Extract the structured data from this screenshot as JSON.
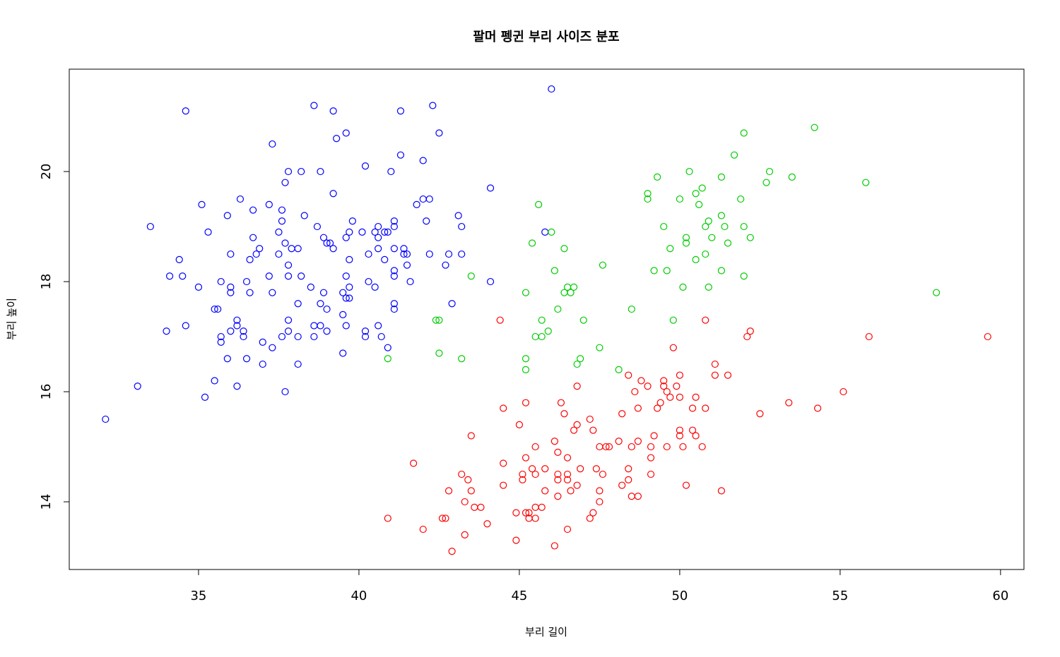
{
  "chart_data": {
    "type": "scatter",
    "title": "팔머 펭귄 부리 사이즈 분포",
    "xlabel": "부리 길이",
    "ylabel": "부리 높이",
    "xlim": [
      30.97,
      60.73
    ],
    "ylim": [
      12.77,
      21.86
    ],
    "xticks": [
      35,
      40,
      45,
      50,
      55,
      60
    ],
    "yticks": [
      14,
      16,
      18,
      20
    ],
    "grid": false,
    "series": [
      {
        "color": "blue",
        "x": [
          32.1,
          33.1,
          33.5,
          34.0,
          34.1,
          34.4,
          34.5,
          34.6,
          34.6,
          35.0,
          35.1,
          35.2,
          35.3,
          35.5,
          35.5,
          35.6,
          35.7,
          35.7,
          35.7,
          35.9,
          35.9,
          36.0,
          36.0,
          36.0,
          36.0,
          36.2,
          36.2,
          36.2,
          36.3,
          36.4,
          36.4,
          36.5,
          36.5,
          36.6,
          36.6,
          36.7,
          36.7,
          36.8,
          36.9,
          37.0,
          37.0,
          37.2,
          37.2,
          37.3,
          37.3,
          37.3,
          37.5,
          37.5,
          37.6,
          37.6,
          37.6,
          37.7,
          37.7,
          37.7,
          37.8,
          37.8,
          37.8,
          37.8,
          37.8,
          37.9,
          38.1,
          38.1,
          38.1,
          38.1,
          38.2,
          38.2,
          38.3,
          38.5,
          38.6,
          38.6,
          38.6,
          38.7,
          38.8,
          38.8,
          38.8,
          38.9,
          38.9,
          39.0,
          39.0,
          39.0,
          39.1,
          39.2,
          39.2,
          39.2,
          39.3,
          39.5,
          39.5,
          39.5,
          39.6,
          39.6,
          39.6,
          39.6,
          39.6,
          39.7,
          39.7,
          39.7,
          39.7,
          39.8,
          40.1,
          40.2,
          40.2,
          40.2,
          40.3,
          40.3,
          40.5,
          40.5,
          40.6,
          40.6,
          40.6,
          40.6,
          40.7,
          40.8,
          40.8,
          40.9,
          40.9,
          41.0,
          41.1,
          41.1,
          41.1,
          41.1,
          41.1,
          41.1,
          41.1,
          41.3,
          41.3,
          41.4,
          41.4,
          41.5,
          41.5,
          41.6,
          41.8,
          42.0,
          42.0,
          42.1,
          42.2,
          42.2,
          42.3,
          42.5,
          42.7,
          42.8,
          42.9,
          43.1,
          43.2,
          43.2,
          44.1,
          44.1,
          46.0,
          45.8
        ],
        "values": [
          15.5,
          16.1,
          19.0,
          17.1,
          18.1,
          18.4,
          18.1,
          21.1,
          17.2,
          17.9,
          19.4,
          15.9,
          18.9,
          16.2,
          17.5,
          17.5,
          18.0,
          17.0,
          16.9,
          16.6,
          19.2,
          18.5,
          17.9,
          17.8,
          17.1,
          17.3,
          17.2,
          16.1,
          19.5,
          17.1,
          17.0,
          18.0,
          16.6,
          18.4,
          17.8,
          19.3,
          18.8,
          18.5,
          18.6,
          16.9,
          16.5,
          19.4,
          18.1,
          20.5,
          17.8,
          16.8,
          18.9,
          18.5,
          19.3,
          19.1,
          17.0,
          19.8,
          18.7,
          16.0,
          20.0,
          18.3,
          18.1,
          17.3,
          17.1,
          18.6,
          18.6,
          17.6,
          17.0,
          16.5,
          20.0,
          18.1,
          19.2,
          17.9,
          21.2,
          17.2,
          17.0,
          19.0,
          20.0,
          17.6,
          17.2,
          18.8,
          17.8,
          18.7,
          17.5,
          17.1,
          18.7,
          21.1,
          19.6,
          18.6,
          20.6,
          17.8,
          17.4,
          16.7,
          20.7,
          18.8,
          18.1,
          17.7,
          17.2,
          18.9,
          18.4,
          17.9,
          17.7,
          19.1,
          18.9,
          20.1,
          17.1,
          17.0,
          18.5,
          18.0,
          18.9,
          17.9,
          19.0,
          18.8,
          18.6,
          17.2,
          17.0,
          18.9,
          18.4,
          18.9,
          16.8,
          20.0,
          19.1,
          19.0,
          18.6,
          18.2,
          18.1,
          17.6,
          17.5,
          21.1,
          20.3,
          18.6,
          18.5,
          18.5,
          18.3,
          18.0,
          19.4,
          20.2,
          19.5,
          19.1,
          19.5,
          18.5,
          21.2,
          20.7,
          18.3,
          18.5,
          17.6,
          19.2,
          19.0,
          18.5,
          19.7,
          18.0,
          21.5,
          18.9
        ]
      },
      {
        "color": "#00cd00",
        "x": [
          40.9,
          42.4,
          42.5,
          42.5,
          43.2,
          43.5,
          45.2,
          45.2,
          45.2,
          45.4,
          45.5,
          45.6,
          45.7,
          45.7,
          45.9,
          46.0,
          46.1,
          46.2,
          46.4,
          46.4,
          46.5,
          46.6,
          46.7,
          46.8,
          46.9,
          47.0,
          47.5,
          47.6,
          48.1,
          48.5,
          49.0,
          49.0,
          49.2,
          49.3,
          49.5,
          49.6,
          49.7,
          49.8,
          50.0,
          50.1,
          50.2,
          50.2,
          50.3,
          50.5,
          50.5,
          50.6,
          50.7,
          50.8,
          50.8,
          50.9,
          50.9,
          51.0,
          51.3,
          51.3,
          51.3,
          51.4,
          51.5,
          51.7,
          51.9,
          52.0,
          52.0,
          52.0,
          52.2,
          52.7,
          52.8,
          53.5,
          54.2,
          55.8,
          58.0
        ],
        "values": [
          16.6,
          17.3,
          17.3,
          16.7,
          16.6,
          18.1,
          17.8,
          16.6,
          16.4,
          18.7,
          17.0,
          19.4,
          17.3,
          17.0,
          17.1,
          18.9,
          18.2,
          17.5,
          18.6,
          17.8,
          17.9,
          17.8,
          17.9,
          16.5,
          16.6,
          17.3,
          16.8,
          18.3,
          16.4,
          17.5,
          19.6,
          19.5,
          18.2,
          19.9,
          19.0,
          18.2,
          18.6,
          17.3,
          19.5,
          17.9,
          18.8,
          18.7,
          20.0,
          18.4,
          19.6,
          19.4,
          19.7,
          19.0,
          18.5,
          19.1,
          17.9,
          18.8,
          19.9,
          19.2,
          18.2,
          19.0,
          18.7,
          20.3,
          19.5,
          20.7,
          19.0,
          18.1,
          18.8,
          19.8,
          20.0,
          19.9,
          20.8,
          19.8,
          17.8
        ]
      },
      {
        "color": "red",
        "x": [
          40.9,
          41.7,
          42.0,
          42.6,
          42.7,
          42.8,
          42.9,
          43.2,
          43.3,
          43.3,
          43.4,
          43.5,
          43.5,
          43.6,
          43.8,
          44.0,
          44.4,
          44.5,
          44.5,
          44.5,
          44.9,
          44.9,
          45.0,
          45.1,
          45.1,
          45.2,
          45.2,
          45.2,
          45.3,
          45.3,
          45.4,
          45.5,
          45.5,
          45.5,
          45.5,
          45.7,
          45.8,
          45.8,
          46.1,
          46.1,
          46.2,
          46.2,
          46.2,
          46.2,
          46.3,
          46.4,
          46.5,
          46.5,
          46.5,
          46.5,
          46.6,
          46.7,
          46.8,
          46.8,
          46.8,
          46.9,
          47.2,
          47.2,
          47.3,
          47.3,
          47.4,
          47.5,
          47.5,
          47.5,
          47.6,
          47.7,
          47.8,
          48.1,
          48.2,
          48.2,
          48.4,
          48.4,
          48.4,
          48.5,
          48.5,
          48.6,
          48.7,
          48.7,
          48.7,
          48.8,
          49.0,
          49.1,
          49.1,
          49.1,
          49.2,
          49.3,
          49.4,
          49.5,
          49.5,
          49.6,
          49.6,
          49.7,
          49.8,
          49.9,
          50.0,
          50.0,
          50.0,
          50.0,
          50.1,
          50.2,
          50.4,
          50.4,
          50.5,
          50.5,
          50.7,
          50.8,
          50.8,
          51.1,
          51.1,
          51.3,
          51.5,
          52.1,
          52.2,
          52.5,
          53.4,
          54.3,
          55.1,
          55.9,
          59.6
        ],
        "values": [
          13.7,
          14.7,
          13.5,
          13.7,
          13.7,
          14.2,
          13.1,
          14.5,
          14.0,
          13.4,
          14.4,
          15.2,
          14.2,
          13.9,
          13.9,
          13.6,
          17.3,
          15.7,
          14.7,
          14.3,
          13.3,
          13.8,
          15.4,
          14.5,
          14.4,
          15.8,
          14.8,
          13.8,
          13.8,
          13.7,
          14.6,
          14.5,
          13.7,
          13.9,
          15.0,
          13.9,
          14.2,
          14.6,
          15.1,
          13.2,
          14.9,
          14.5,
          14.4,
          14.1,
          15.8,
          15.6,
          14.8,
          14.5,
          14.4,
          13.5,
          14.2,
          15.3,
          15.4,
          16.1,
          14.3,
          14.6,
          15.5,
          13.7,
          15.3,
          13.8,
          14.6,
          15.0,
          14.2,
          14.0,
          14.5,
          15.0,
          15.0,
          15.1,
          15.6,
          14.3,
          16.3,
          14.6,
          14.4,
          15.0,
          14.1,
          16.0,
          15.7,
          15.1,
          14.1,
          16.2,
          16.1,
          15.0,
          14.8,
          14.5,
          15.2,
          15.7,
          15.8,
          16.2,
          16.1,
          16.0,
          15.0,
          15.9,
          16.8,
          16.1,
          16.3,
          15.9,
          15.3,
          15.2,
          15.0,
          14.3,
          15.7,
          15.3,
          15.9,
          15.2,
          15.0,
          15.7,
          17.3,
          16.5,
          16.3,
          14.2,
          16.3,
          17.0,
          17.1,
          15.6,
          15.8,
          15.7,
          16.0,
          17.0,
          17.0
        ]
      }
    ]
  }
}
